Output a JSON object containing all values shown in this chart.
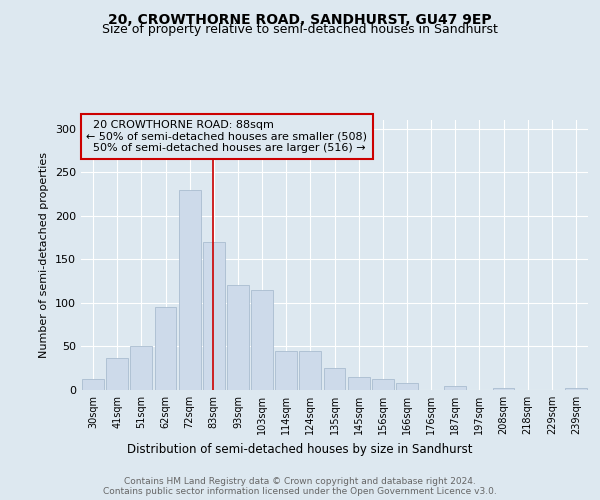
{
  "title": "20, CROWTHORNE ROAD, SANDHURST, GU47 9EP",
  "subtitle": "Size of property relative to semi-detached houses in Sandhurst",
  "xlabel": "Distribution of semi-detached houses by size in Sandhurst",
  "ylabel": "Number of semi-detached properties",
  "categories": [
    "30sqm",
    "41sqm",
    "51sqm",
    "62sqm",
    "72sqm",
    "83sqm",
    "93sqm",
    "103sqm",
    "114sqm",
    "124sqm",
    "135sqm",
    "145sqm",
    "156sqm",
    "166sqm",
    "176sqm",
    "187sqm",
    "197sqm",
    "208sqm",
    "218sqm",
    "229sqm",
    "239sqm"
  ],
  "values": [
    13,
    37,
    51,
    95,
    230,
    170,
    120,
    115,
    45,
    45,
    25,
    15,
    13,
    8,
    0,
    5,
    0,
    2,
    0,
    0,
    2
  ],
  "bar_color": "#cddaea",
  "bar_edge_color": "#aabdd0",
  "vline_x_index": 5,
  "marker_label": "20 CROWTHORNE ROAD: 88sqm",
  "smaller_text": "← 50% of semi-detached houses are smaller (508)",
  "larger_text": "50% of semi-detached houses are larger (516) →",
  "vline_color": "#cc0000",
  "box_edge_color": "#cc0000",
  "ylim": [
    0,
    310
  ],
  "yticks": [
    0,
    50,
    100,
    150,
    200,
    250,
    300
  ],
  "footer_line1": "Contains HM Land Registry data © Crown copyright and database right 2024.",
  "footer_line2": "Contains public sector information licensed under the Open Government Licence v3.0.",
  "background_color": "#dde8f0",
  "plot_bg_color": "#dde8f0",
  "title_fontsize": 10,
  "subtitle_fontsize": 9,
  "annotation_fontsize": 8
}
